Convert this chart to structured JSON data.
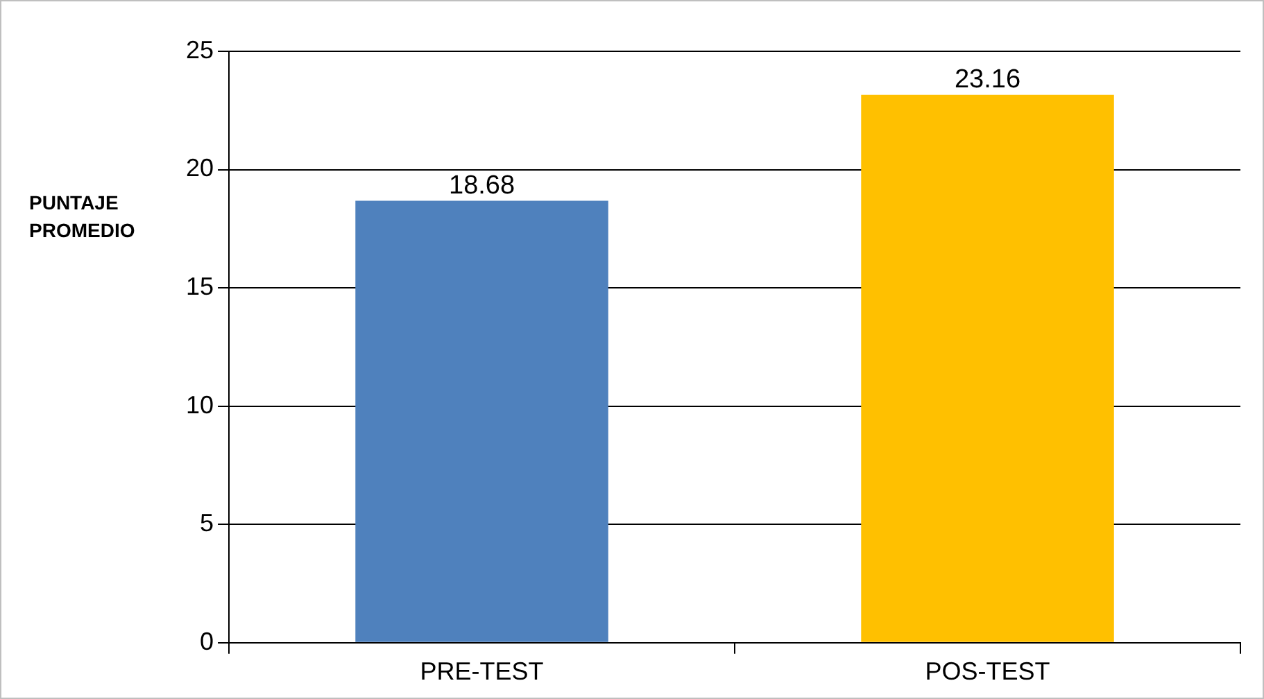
{
  "chart_data": {
    "type": "bar",
    "ylabel": "PUNTAJE PROMEDIO",
    "categories": [
      "PRE-TEST",
      "POS-TEST"
    ],
    "values": [
      18.68,
      23.16
    ],
    "colors": [
      "#4f81bd",
      "#ffc000"
    ],
    "ylim": [
      0,
      25
    ],
    "yticks": [
      0,
      5,
      10,
      15,
      20,
      25
    ],
    "grid": "y",
    "data_labels": true
  }
}
